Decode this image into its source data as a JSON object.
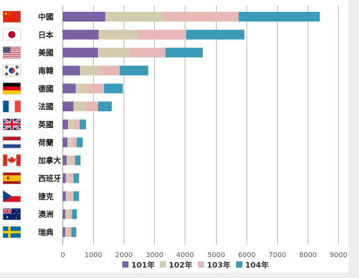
{
  "chart_data": {
    "type": "bar",
    "orientation": "horizontal",
    "stacked": true,
    "categories": [
      "中國",
      "日本",
      "美國",
      "南韓",
      "德國",
      "法國",
      "英國",
      "荷蘭",
      "加拿大",
      "西班牙",
      "捷克",
      "澳洲",
      "瑞典"
    ],
    "series": [
      {
        "name": "101年",
        "color": "#7b62a5",
        "values": [
          1400,
          1180,
          1160,
          570,
          430,
          360,
          180,
          160,
          140,
          110,
          110,
          90,
          90
        ]
      },
      {
        "name": "102年",
        "color": "#d4ccae",
        "values": [
          1900,
          1290,
          1040,
          640,
          410,
          390,
          180,
          140,
          110,
          110,
          100,
          110,
          90
        ]
      },
      {
        "name": "103年",
        "color": "#e8b8b8",
        "values": [
          2450,
          1570,
          1160,
          660,
          520,
          410,
          200,
          160,
          160,
          140,
          150,
          110,
          110
        ]
      },
      {
        "name": "104年",
        "color": "#3b9cb9",
        "values": [
          2650,
          1900,
          1220,
          930,
          610,
          450,
          210,
          200,
          180,
          180,
          180,
          160,
          160
        ]
      }
    ],
    "xlim": [
      0,
      9000
    ],
    "xticks": [
      0,
      1000,
      2000,
      3000,
      4000,
      5000,
      6000,
      7000,
      8000,
      9000
    ],
    "grid": true,
    "legend": "bottom"
  },
  "category_flags": [
    "china-flag-icon",
    "japan-flag-icon",
    "usa-flag-icon",
    "south-korea-flag-icon",
    "germany-flag-icon",
    "france-flag-icon",
    "uk-flag-icon",
    "netherlands-flag-icon",
    "canada-flag-icon",
    "spain-flag-icon",
    "czech-flag-icon",
    "australia-flag-icon",
    "sweden-flag-icon"
  ]
}
